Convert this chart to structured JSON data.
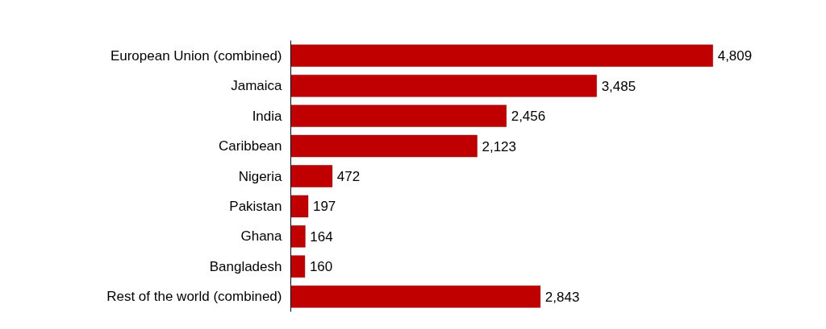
{
  "chart_data": {
    "type": "bar",
    "orientation": "horizontal",
    "categories": [
      "European Union (combined)",
      "Jamaica",
      "India",
      "Caribbean",
      "Nigeria",
      "Pakistan",
      "Ghana",
      "Bangladesh",
      "Rest of the world (combined)"
    ],
    "values": [
      4809,
      3485,
      2456,
      2123,
      472,
      197,
      164,
      160,
      2843
    ],
    "value_labels": [
      "4,809",
      "3,485",
      "2,456",
      "2,123",
      "472",
      "197",
      "164",
      "160",
      "2,843"
    ],
    "color": "#c00000",
    "grid": false
  }
}
